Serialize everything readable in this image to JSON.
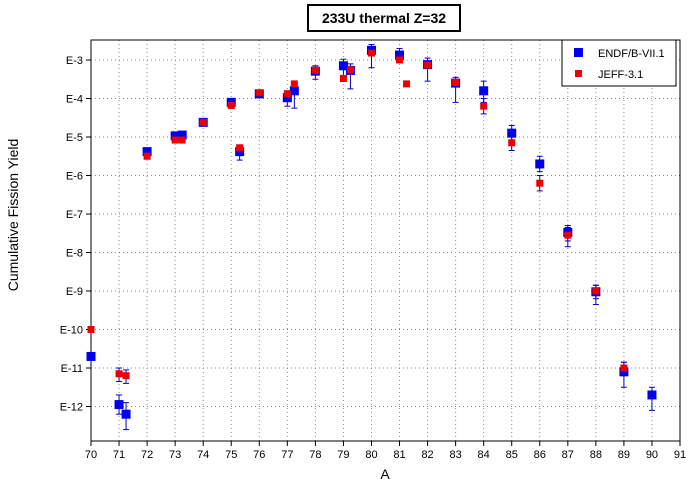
{
  "chart_data": {
    "type": "scatter",
    "title": "233U thermal Z=32",
    "xlabel": "A",
    "ylabel": "Cumulative Fission Yield",
    "xlim": [
      70,
      91
    ],
    "ylim_exponent": [
      -13,
      -2.3
    ],
    "y_scale": "log",
    "x_ticks": [
      "70",
      "71",
      "72",
      "73",
      "74",
      "75",
      "76",
      "77",
      "78",
      "79",
      "80",
      "81",
      "82",
      "83",
      "84",
      "85",
      "86",
      "87",
      "88",
      "89",
      "90",
      "91"
    ],
    "y_ticks": [
      {
        "exp": -3,
        "label": "E-3"
      },
      {
        "exp": -4,
        "label": "E-4"
      },
      {
        "exp": -5,
        "label": "E-5"
      },
      {
        "exp": -6,
        "label": "E-6"
      },
      {
        "exp": -7,
        "label": "E-7"
      },
      {
        "exp": -8,
        "label": "E-8"
      },
      {
        "exp": -9,
        "label": "E-9"
      },
      {
        "exp": -10,
        "label": "E-10"
      },
      {
        "exp": -11,
        "label": "E-11"
      },
      {
        "exp": -12,
        "label": "E-12"
      }
    ],
    "grid": true,
    "legend_position": "top-right",
    "series": [
      {
        "name": "ENDF/B-VII.1",
        "color": "#0000ee",
        "marker": "square-large",
        "points": [
          {
            "x": 70.0,
            "y_exp": -10.7
          },
          {
            "x": 71.0,
            "y_exp": -11.95,
            "err_exp": [
              -12.2,
              -11.7
            ]
          },
          {
            "x": 71.25,
            "y_exp": -12.2,
            "err_exp": [
              -12.6,
              -11.9
            ]
          },
          {
            "x": 72.0,
            "y_exp": -5.38
          },
          {
            "x": 73.0,
            "y_exp": -4.97
          },
          {
            "x": 73.25,
            "y_exp": -4.95
          },
          {
            "x": 74.0,
            "y_exp": -4.62
          },
          {
            "x": 75.0,
            "y_exp": -4.1
          },
          {
            "x": 75.3,
            "y_exp": -5.38,
            "err_exp": [
              -5.6,
              -5.25
            ]
          },
          {
            "x": 76.0,
            "y_exp": -3.88
          },
          {
            "x": 77.0,
            "y_exp": -3.98,
            "err_exp": [
              -4.2,
              -3.8
            ]
          },
          {
            "x": 77.25,
            "y_exp": -3.8,
            "err_exp": [
              -4.25,
              -3.65
            ]
          },
          {
            "x": 78.0,
            "y_exp": -3.29,
            "err_exp": [
              -3.5,
              -3.15
            ]
          },
          {
            "x": 79.0,
            "y_exp": -3.15,
            "err_exp": [
              -3.4,
              -2.98
            ]
          },
          {
            "x": 79.25,
            "y_exp": -3.27,
            "err_exp": [
              -3.75,
              -3.1
            ]
          },
          {
            "x": 80.0,
            "y_exp": -2.75,
            "err_exp": [
              -3.2,
              -2.6
            ]
          },
          {
            "x": 81.0,
            "y_exp": -2.87,
            "err_exp": [
              -3.05,
              -2.7
            ]
          },
          {
            "x": 82.0,
            "y_exp": -3.12,
            "err_exp": [
              -3.55,
              -2.95
            ]
          },
          {
            "x": 83.0,
            "y_exp": -3.6,
            "err_exp": [
              -4.1,
              -3.45
            ]
          },
          {
            "x": 84.0,
            "y_exp": -3.8,
            "err_exp": [
              -4.1,
              -3.55
            ]
          },
          {
            "x": 85.0,
            "y_exp": -4.9,
            "err_exp": [
              -5.15,
              -4.7
            ]
          },
          {
            "x": 86.0,
            "y_exp": -5.7,
            "err_exp": [
              -5.9,
              -5.5
            ]
          },
          {
            "x": 87.0,
            "y_exp": -7.48,
            "err_exp": [
              -7.7,
              -7.3
            ]
          },
          {
            "x": 88.0,
            "y_exp": -9.02,
            "err_exp": [
              -9.35,
              -8.85
            ]
          },
          {
            "x": 89.0,
            "y_exp": -11.1,
            "err_exp": [
              -11.5,
              -10.85
            ]
          },
          {
            "x": 90.0,
            "y_exp": -11.7,
            "err_exp": [
              -12.1,
              -11.5
            ]
          }
        ]
      },
      {
        "name": "JEFF-3.1",
        "color": "#ee0000",
        "marker": "square-small",
        "points": [
          {
            "x": 70.0,
            "y_exp": -10.0
          },
          {
            "x": 71.0,
            "y_exp": -11.15,
            "err_exp": [
              -11.35,
              -11.0
            ]
          },
          {
            "x": 71.25,
            "y_exp": -11.2,
            "err_exp": [
              -11.4,
              -11.05
            ]
          },
          {
            "x": 72.0,
            "y_exp": -5.5
          },
          {
            "x": 73.0,
            "y_exp": -5.08
          },
          {
            "x": 73.25,
            "y_exp": -5.08
          },
          {
            "x": 74.0,
            "y_exp": -4.62
          },
          {
            "x": 75.0,
            "y_exp": -4.18
          },
          {
            "x": 75.3,
            "y_exp": -5.28
          },
          {
            "x": 76.0,
            "y_exp": -3.85
          },
          {
            "x": 77.0,
            "y_exp": -3.88
          },
          {
            "x": 77.25,
            "y_exp": -3.62
          },
          {
            "x": 78.0,
            "y_exp": -3.27
          },
          {
            "x": 79.0,
            "y_exp": -3.48
          },
          {
            "x": 79.25,
            "y_exp": -3.25
          },
          {
            "x": 80.0,
            "y_exp": -2.82
          },
          {
            "x": 81.0,
            "y_exp": -3.0
          },
          {
            "x": 81.25,
            "y_exp": -3.62
          },
          {
            "x": 82.0,
            "y_exp": -3.13
          },
          {
            "x": 83.0,
            "y_exp": -3.58
          },
          {
            "x": 84.0,
            "y_exp": -4.2,
            "err_exp": [
              -4.4,
              -4.0
            ]
          },
          {
            "x": 85.0,
            "y_exp": -5.15,
            "err_exp": [
              -5.35,
              -5.0
            ]
          },
          {
            "x": 86.0,
            "y_exp": -6.2,
            "err_exp": [
              -6.4,
              -6.0
            ]
          },
          {
            "x": 87.0,
            "y_exp": -7.55,
            "err_exp": [
              -7.85,
              -7.35
            ]
          },
          {
            "x": 88.0,
            "y_exp": -9.0,
            "err_exp": [
              -9.2,
              -8.85
            ]
          },
          {
            "x": 89.0,
            "y_exp": -11.0,
            "err_exp": [
              -11.15,
              -10.85
            ]
          }
        ]
      }
    ]
  }
}
